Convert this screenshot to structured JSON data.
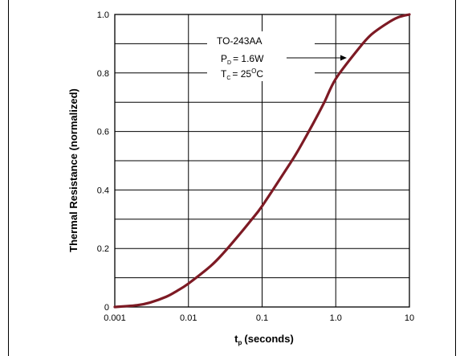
{
  "chart_data": {
    "type": "line",
    "title": "",
    "xlabel": "(seconds)",
    "xlabel_main": "t",
    "xlabel_sub": "p",
    "ylabel": "Thermal Resistance (normalized)",
    "x_scale": "log",
    "xlim": [
      0.001,
      10
    ],
    "ylim": [
      0,
      1.0
    ],
    "x_ticks": [
      0.001,
      0.01,
      0.1,
      1.0,
      10
    ],
    "x_tick_labels": [
      "0.001",
      "0.01",
      "0.1",
      "1.0",
      "10"
    ],
    "y_ticks": [
      0,
      0.2,
      0.4,
      0.6,
      0.8,
      1.0
    ],
    "y_tick_labels": [
      "0",
      "0.2",
      "0.4",
      "0.6",
      "0.8",
      "1.0"
    ],
    "grid": true,
    "series": [
      {
        "color": "#7d1a24",
        "x": [
          0.001,
          0.002,
          0.003,
          0.005,
          0.007,
          0.01,
          0.02,
          0.03,
          0.05,
          0.07,
          0.1,
          0.2,
          0.3,
          0.5,
          0.7,
          1.0,
          2.0,
          3.0,
          5.0,
          7.0,
          10.0
        ],
        "y": [
          0.0,
          0.006,
          0.015,
          0.035,
          0.055,
          0.08,
          0.14,
          0.185,
          0.25,
          0.295,
          0.345,
          0.46,
          0.53,
          0.63,
          0.7,
          0.78,
          0.88,
          0.93,
          0.97,
          0.99,
          1.0
        ]
      }
    ],
    "annotation": {
      "line1": "TO-243AA",
      "line2_main": "P",
      "line2_sub": "D",
      "line2_rest": "= 1.6W",
      "line3_main": "T",
      "line3_sub": "C",
      "line3_rest": "= 25",
      "line3_sup": "O",
      "line3_end": "C"
    }
  }
}
